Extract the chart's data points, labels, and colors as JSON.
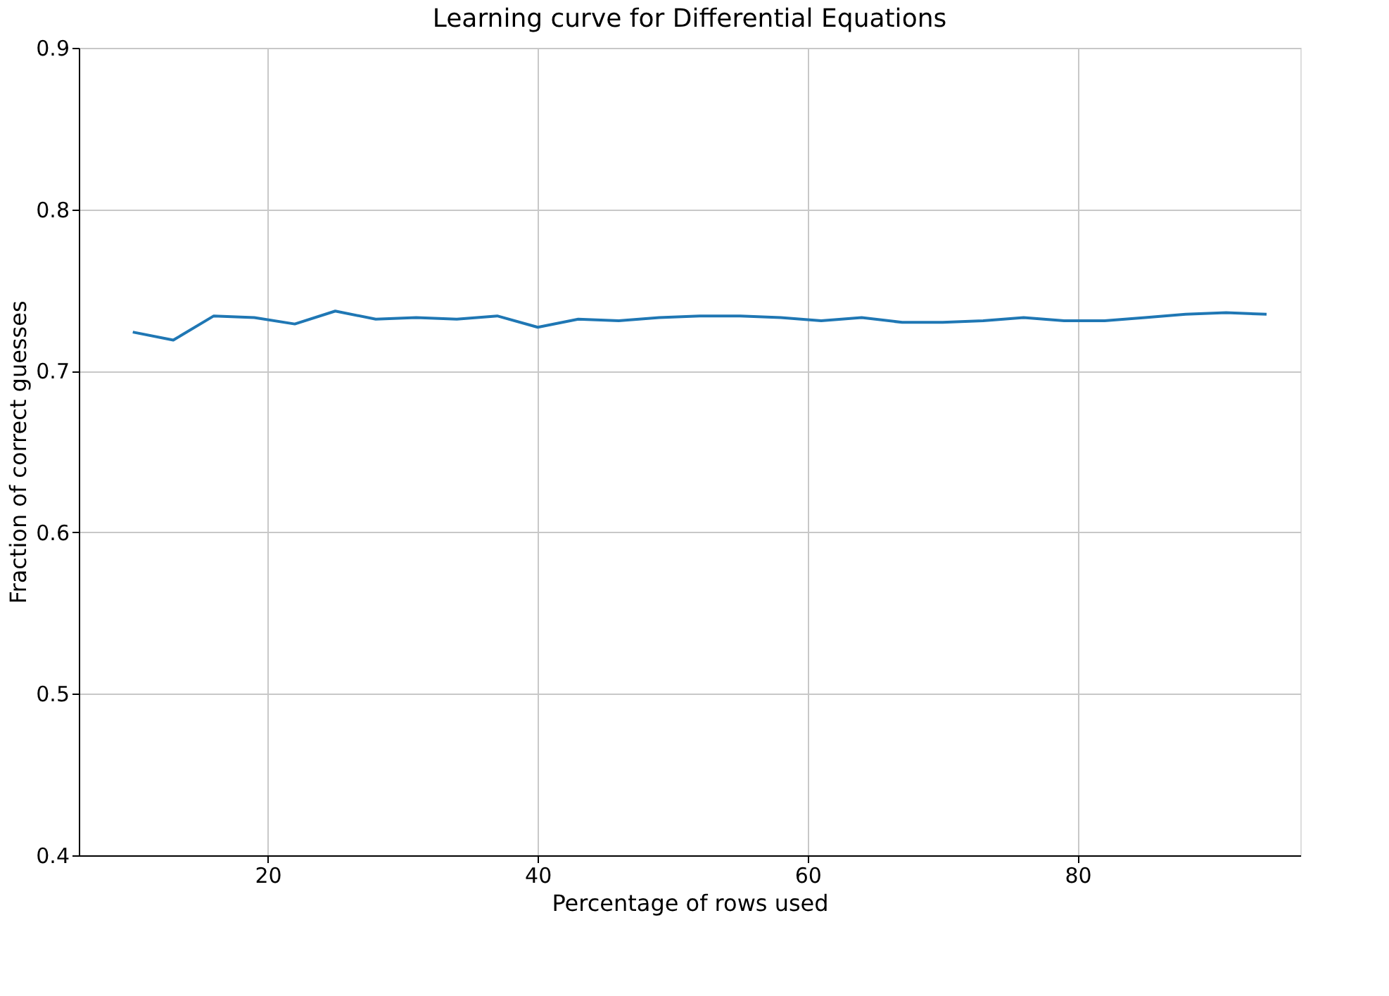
{
  "chart_data": {
    "type": "line",
    "title": "Learning curve for Differential Equations",
    "xlabel": "Percentage of rows used",
    "ylabel": "Fraction of correct guesses",
    "x": [
      10,
      13,
      16,
      19,
      22,
      25,
      28,
      31,
      34,
      37,
      40,
      43,
      46,
      49,
      52,
      55,
      58,
      61,
      64,
      67,
      70,
      73,
      76,
      79,
      82,
      85,
      88,
      91,
      94
    ],
    "series": [
      {
        "color": "#1f77b4",
        "values": [
          0.724,
          0.719,
          0.734,
          0.733,
          0.729,
          0.737,
          0.732,
          0.733,
          0.732,
          0.734,
          0.727,
          0.732,
          0.731,
          0.733,
          0.734,
          0.734,
          0.733,
          0.731,
          0.733,
          0.73,
          0.73,
          0.731,
          0.733,
          0.731,
          0.731,
          0.733,
          0.735,
          0.736,
          0.735
        ]
      }
    ],
    "xlim": [
      6,
      96.5
    ],
    "xticks": [
      20,
      40,
      60,
      80
    ],
    "ylim": [
      0.4,
      0.9
    ],
    "yticks": [
      0.4,
      0.5,
      0.6,
      0.7,
      0.8,
      0.9
    ],
    "grid": true
  }
}
